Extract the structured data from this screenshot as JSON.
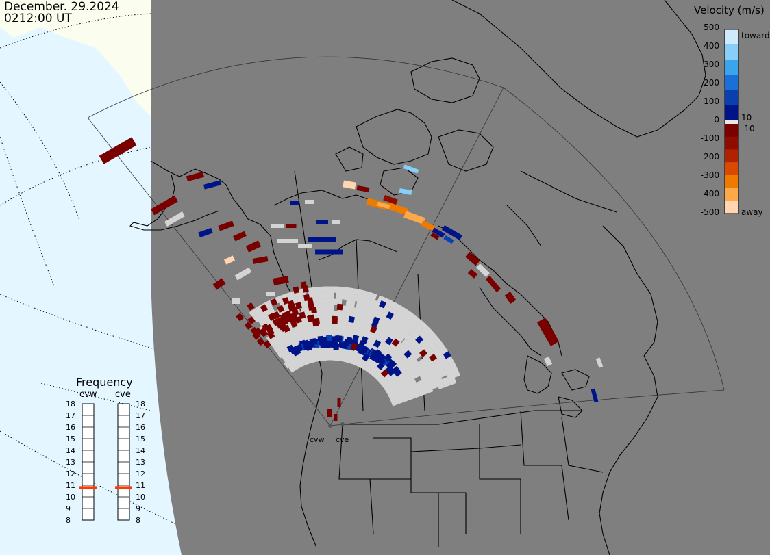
{
  "header": {
    "date": "December. 29.2024",
    "time": "0212:00 UT"
  },
  "velocity_scale": {
    "title": "Velocity (m/s)",
    "ticks": [
      "500",
      "400",
      "300",
      "200",
      "100",
      "0",
      "-100",
      "-200",
      "-300",
      "-400",
      "-500"
    ],
    "small_labels": [
      "10",
      "-10"
    ],
    "toward_label": "toward",
    "away_label": "away",
    "colors": [
      "#cdeaff",
      "#87cff8",
      "#3aa4ec",
      "#1a6fd8",
      "#0a3fb0",
      "#00148a",
      "#7a0000",
      "#8f0c00",
      "#b32200",
      "#d94a00",
      "#ef7a00",
      "#fda94a",
      "#ffd6b0"
    ]
  },
  "frequency": {
    "title": "Frequency",
    "radars": [
      {
        "name": "cvw",
        "value": 10.8
      },
      {
        "name": "cve",
        "value": 10.8
      }
    ],
    "ticks": [
      "18",
      "17",
      "16",
      "15",
      "14",
      "13",
      "12",
      "11",
      "10",
      "9",
      "8"
    ],
    "min": 8,
    "max": 18,
    "marker_color": "#ff3a00"
  },
  "radar_labels": [
    "cvw",
    "cve"
  ],
  "colors": {
    "globe": "#7f7f7f",
    "ocean": "#e4f6ff",
    "ice": "#fbfdee",
    "scatter": "#d4d4d4",
    "lines": "#000000"
  }
}
